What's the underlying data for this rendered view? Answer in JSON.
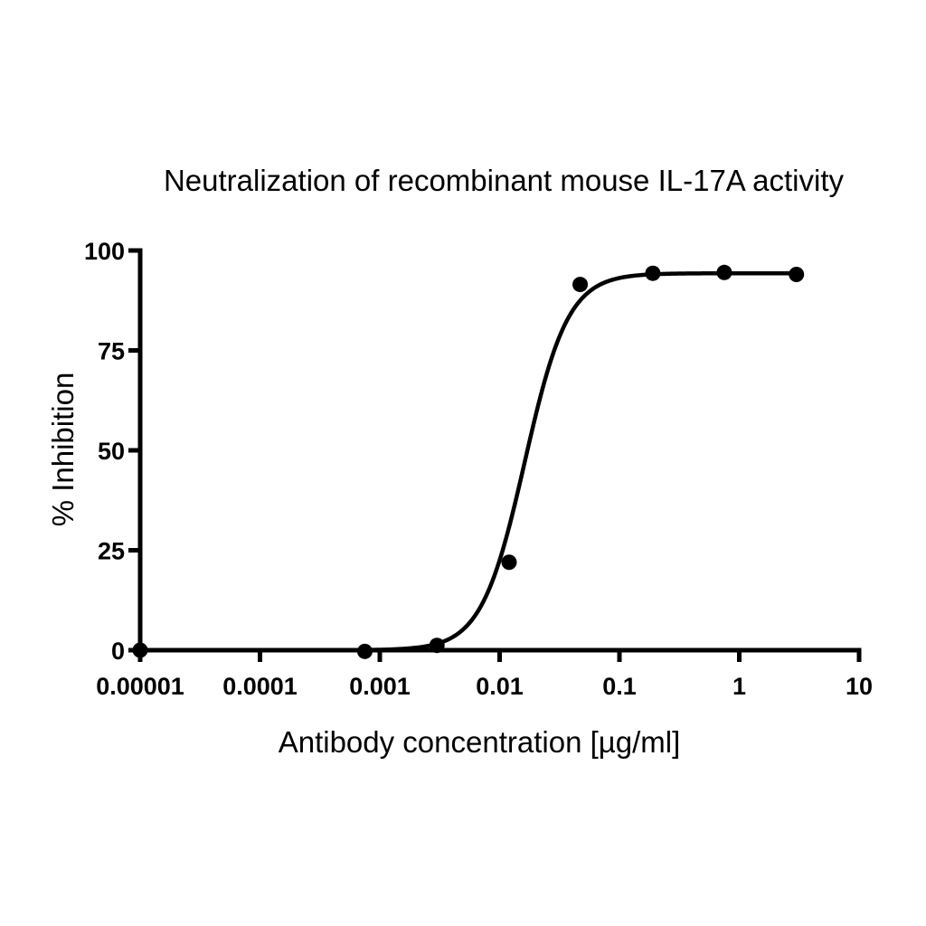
{
  "chart_data": {
    "type": "scatter",
    "title": "Neutralization of recombinant mouse IL-17A activity",
    "xlabel": "Antibody concentration [µg/ml]",
    "ylabel": "% Inhibition",
    "x_scale": "log",
    "xlim": [
      1e-05,
      10
    ],
    "ylim": [
      0,
      100
    ],
    "x_ticks": [
      {
        "value": 1e-05,
        "label": "0.00001"
      },
      {
        "value": 0.0001,
        "label": "0.0001"
      },
      {
        "value": 0.001,
        "label": "0.001"
      },
      {
        "value": 0.01,
        "label": "0.01"
      },
      {
        "value": 0.1,
        "label": "0.1"
      },
      {
        "value": 1,
        "label": "1"
      },
      {
        "value": 10,
        "label": "10"
      }
    ],
    "y_ticks": [
      {
        "value": 0,
        "label": "0"
      },
      {
        "value": 25,
        "label": "25"
      },
      {
        "value": 50,
        "label": "50"
      },
      {
        "value": 75,
        "label": "75"
      },
      {
        "value": 100,
        "label": "100"
      }
    ],
    "grid": false,
    "series": [
      {
        "points": [
          {
            "x": 1e-05,
            "y": 0
          },
          {
            "x": 0.00075,
            "y": -0.3
          },
          {
            "x": 0.003,
            "y": 1.2
          },
          {
            "x": 0.012,
            "y": 22
          },
          {
            "x": 0.047,
            "y": 91.5
          },
          {
            "x": 0.19,
            "y": 94.3
          },
          {
            "x": 0.75,
            "y": 94.5
          },
          {
            "x": 3,
            "y": 94
          }
        ]
      }
    ],
    "fit_curve": {
      "model": "sigmoidal dose-response",
      "bottom": 0,
      "top": 94.3,
      "log_ec50": -1.79,
      "hill_slope": 2.4
    }
  }
}
